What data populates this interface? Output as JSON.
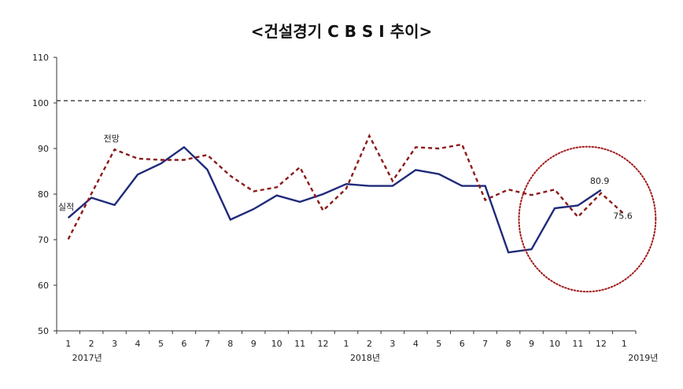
{
  "chart_data": {
    "type": "line",
    "title": "<건설경기 C B S I 추이>",
    "xlabel": "",
    "ylabel": "",
    "ylim": [
      50,
      110
    ],
    "yticks": [
      "50",
      "60",
      "70",
      "80",
      "90",
      "100",
      "110"
    ],
    "categories": [
      "1",
      "2",
      "3",
      "4",
      "5",
      "6",
      "7",
      "8",
      "9",
      "10",
      "11",
      "12",
      "1",
      "2",
      "3",
      "4",
      "5",
      "6",
      "7",
      "8",
      "9",
      "10",
      "11",
      "12",
      "1"
    ],
    "year_labels": [
      "2017년",
      "2018년",
      "2019년"
    ],
    "reference_line": 100.5,
    "series": [
      {
        "name": "실적",
        "style": "solid",
        "color": "#1f2a7a",
        "values": [
          74.8,
          79.2,
          77.6,
          84.3,
          86.7,
          90.3,
          85.4,
          74.4,
          76.7,
          79.7,
          78.3,
          80.0,
          82.2,
          81.8,
          81.8,
          85.3,
          84.4,
          81.8,
          81.8,
          67.2,
          67.9,
          76.9,
          77.5,
          80.9,
          null
        ]
      },
      {
        "name": "전망",
        "style": "dashed",
        "color": "#8b1a1a",
        "values": [
          70.1,
          80.1,
          89.8,
          87.8,
          87.5,
          87.5,
          88.6,
          84.0,
          80.6,
          81.5,
          85.9,
          76.4,
          81.2,
          92.8,
          82.9,
          90.3,
          90.0,
          90.9,
          78.7,
          81.0,
          79.8,
          81.0,
          75.0,
          80.2,
          75.6
        ]
      }
    ],
    "annotations": [
      "80.9",
      "75.6"
    ],
    "highlight_color": "#a01818"
  }
}
